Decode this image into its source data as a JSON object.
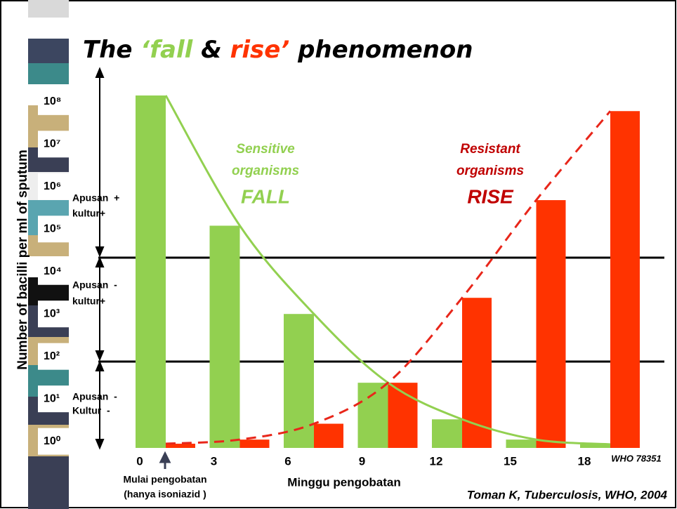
{
  "chart_data": {
    "type": "bar",
    "title_parts": [
      {
        "text": "The ",
        "color": "#000000"
      },
      {
        "text": "‘fall",
        "color": "#92d050"
      },
      {
        "text": " & ",
        "color": "#000000"
      },
      {
        "text": "rise’",
        "color": "#ff3300"
      },
      {
        "text": " phenomenon",
        "color": "#000000"
      }
    ],
    "y_label": "Number of bacilli per ml of sputum",
    "x_label": "Minggu pengobatan",
    "categories": [
      "0",
      "3",
      "6",
      "9",
      "12",
      "15",
      "18"
    ],
    "series": [
      {
        "color": "#92d050",
        "values": [
          140000000,
          120000,
          1000,
          24,
          3.3,
          1.1,
          0.85
        ]
      },
      {
        "color": "#ff3300",
        "values": [
          0.88,
          1.1,
          2.6,
          24,
          2400,
          480000,
          60000000
        ]
      }
    ],
    "log_scale": true,
    "ylim": [
      0.7,
      140000000
    ],
    "yticks": [
      {
        "value": 1,
        "label": "10⁰"
      },
      {
        "value": 10,
        "label": "10¹"
      },
      {
        "value": 100,
        "label": "10²"
      },
      {
        "value": 1000,
        "label": "10³"
      },
      {
        "value": 10000,
        "label": "10⁴"
      },
      {
        "value": 100000,
        "label": "10⁵"
      },
      {
        "value": 1000000,
        "label": "10⁶"
      },
      {
        "value": 10000000,
        "label": "10⁷"
      },
      {
        "value": 100000000,
        "label": "10⁸"
      }
    ],
    "sensitive_note": [
      "Sensitive",
      "organisms",
      "FALL"
    ],
    "resistant_note": [
      "Resistant",
      "organisms",
      "RISE"
    ],
    "zones": [
      [
        "Apusan  +",
        "kultur+"
      ],
      [
        "Apusan  -",
        "kultur+"
      ],
      [
        "Apusan  -",
        "Kultur  -"
      ]
    ],
    "start_note": [
      "Mulai pengobatan",
      "(hanya isoniazid )"
    ],
    "code": "WHO 78351",
    "source": "Toman K, Tuberculosis, WHO, 2004"
  }
}
